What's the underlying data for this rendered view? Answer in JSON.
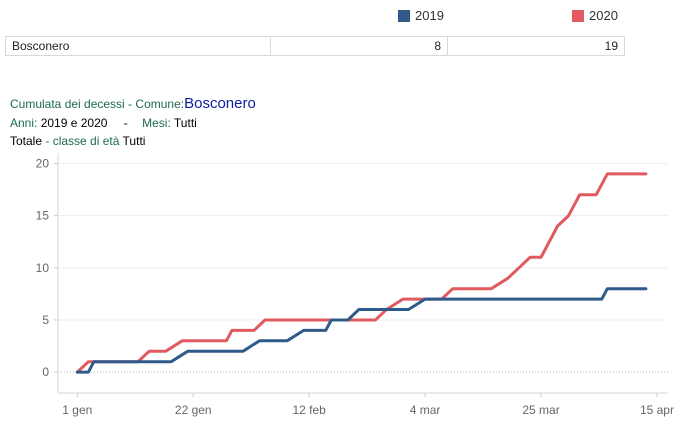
{
  "legend": {
    "items": [
      {
        "label": "2019",
        "color": "#2e5b8a"
      },
      {
        "label": "2020",
        "color": "#e05a5f"
      }
    ]
  },
  "summary": {
    "comune": "Bosconero",
    "v2019": "8",
    "v2020": "19"
  },
  "header": {
    "line1_prefix": "Cumulata dei decessi -",
    "line1_comune_label": "Comune:",
    "line1_comune": "Bosconero",
    "line2_anni_label": "Anni:",
    "line2_anni": "2019 e 2020",
    "line2_sep": "-",
    "line2_mesi_label": "Mesi:",
    "line2_mesi": "Tutti",
    "line3_totale": "Totale",
    "line3_classe_label": "- classe di età",
    "line3_classe": "Tutti"
  },
  "chart_data": {
    "type": "line",
    "x_ticks": [
      {
        "label": "1 gen",
        "day": 1
      },
      {
        "label": "22 gen",
        "day": 22
      },
      {
        "label": "12 feb",
        "day": 43
      },
      {
        "label": "4 mar",
        "day": 64
      },
      {
        "label": "25 mar",
        "day": 85
      },
      {
        "label": "15 apr",
        "day": 106
      }
    ],
    "y_ticks": [
      0,
      5,
      10,
      15,
      20
    ],
    "ylim": [
      -2,
      21
    ],
    "xlim": [
      -2.5,
      108
    ],
    "grid": true,
    "series": [
      {
        "name": "2019",
        "color": "#2e5b8a",
        "points": [
          [
            1,
            0
          ],
          [
            3,
            0
          ],
          [
            4,
            1
          ],
          [
            18,
            1
          ],
          [
            21,
            2
          ],
          [
            31,
            2
          ],
          [
            34,
            3
          ],
          [
            39,
            3
          ],
          [
            42,
            4
          ],
          [
            46,
            4
          ],
          [
            47,
            5
          ],
          [
            50,
            5
          ],
          [
            52,
            6
          ],
          [
            61,
            6
          ],
          [
            64,
            7
          ],
          [
            96,
            7
          ],
          [
            97,
            8
          ],
          [
            104,
            8
          ]
        ]
      },
      {
        "name": "2020",
        "color": "#e05a5f",
        "points": [
          [
            1,
            0
          ],
          [
            3,
            1
          ],
          [
            12,
            1
          ],
          [
            14,
            2
          ],
          [
            17,
            2
          ],
          [
            20,
            3
          ],
          [
            28,
            3
          ],
          [
            29,
            4
          ],
          [
            33,
            4
          ],
          [
            35,
            5
          ],
          [
            55,
            5
          ],
          [
            57,
            6
          ],
          [
            60,
            7
          ],
          [
            67,
            7
          ],
          [
            69,
            8
          ],
          [
            76,
            8
          ],
          [
            79,
            9
          ],
          [
            81,
            10
          ],
          [
            83,
            11
          ],
          [
            85,
            11
          ],
          [
            88,
            14
          ],
          [
            90,
            15
          ],
          [
            92,
            17
          ],
          [
            95,
            17
          ],
          [
            97,
            19
          ],
          [
            104,
            19
          ]
        ]
      }
    ]
  }
}
